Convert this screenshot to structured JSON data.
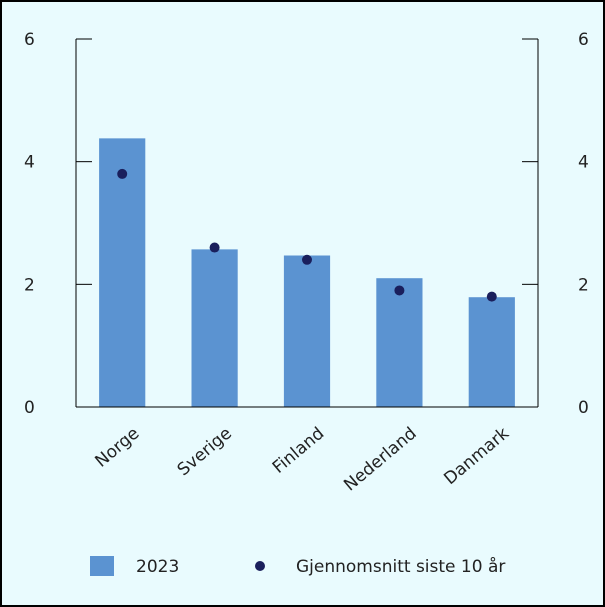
{
  "chart_data": {
    "type": "bar",
    "title": "",
    "xlabel": "",
    "ylabel": "",
    "ylim": [
      0,
      6
    ],
    "yticks": [
      0,
      2,
      4,
      6
    ],
    "categories": [
      "Norge",
      "Sverige",
      "Finland",
      "Nederland",
      "Danmark"
    ],
    "series": [
      {
        "name": "2023",
        "kind": "bar",
        "color": "#5b93d1",
        "values": [
          4.38,
          2.57,
          2.47,
          2.1,
          1.79
        ]
      },
      {
        "name": "Gjennomsnitt siste 10 år",
        "kind": "point",
        "color": "#1a1f5c",
        "values": [
          3.8,
          2.6,
          2.4,
          1.9,
          1.8
        ]
      }
    ],
    "grid": false,
    "legend": "bottom"
  }
}
